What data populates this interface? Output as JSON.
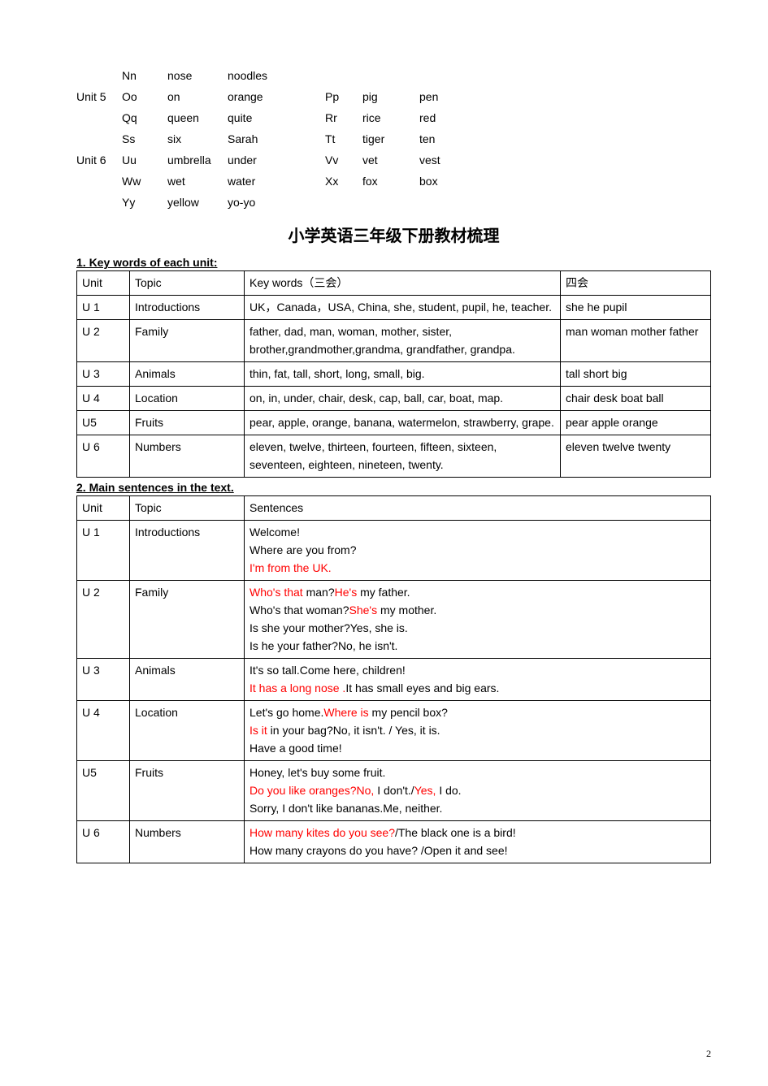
{
  "letters": {
    "rows": [
      {
        "label": "",
        "c1": "Nn",
        "w1": "nose",
        "w2": "noodles",
        "c2": "",
        "w3": "",
        "w4": ""
      },
      {
        "label": "Unit 5",
        "c1": "Oo",
        "w1": "on",
        "w2": "orange",
        "c2": "Pp",
        "w3": "pig",
        "w4": "pen"
      },
      {
        "label": "",
        "c1": "Qq",
        "w1": "queen",
        "w2": "quite",
        "c2": "Rr",
        "w3": "rice",
        "w4": "red"
      },
      {
        "label": "",
        "c1": "Ss",
        "w1": "six",
        "w2": "Sarah",
        "c2": "Tt",
        "w3": "tiger",
        "w4": "ten"
      },
      {
        "label": "Unit 6",
        "c1": "Uu",
        "w1": "umbrella",
        "w2": "under",
        "c2": "Vv",
        "w3": "vet",
        "w4": "vest"
      },
      {
        "label": "",
        "c1": "Ww",
        "w1": "wet",
        "w2": "water",
        "c2": "Xx",
        "w3": "fox",
        "w4": "box"
      },
      {
        "label": "",
        "c1": "Yy",
        "w1": "yellow",
        "w2": "yo-yo",
        "c2": "",
        "w3": "",
        "w4": ""
      }
    ]
  },
  "main_title": "小学英语三年级下册教材梳理",
  "section1_title": "1.  Key words of each unit:",
  "table1": {
    "headers": {
      "unit": "Unit",
      "topic": "Topic",
      "key": "Key words（三会）",
      "four": "四会"
    },
    "rows": [
      {
        "unit": "U 1",
        "topic": "Introductions",
        "key": "UK，Canada，USA, China, she, student, pupil, he, teacher.",
        "four": "she  he  pupil"
      },
      {
        "unit": "U 2",
        "topic": "Family",
        "key": "father, dad, man, woman, mother, sister, brother,grandmother,grandma, grandfather, grandpa.",
        "four": "man  woman  mother  father"
      },
      {
        "unit": "U 3",
        "topic": "Animals",
        "key": "thin, fat, tall, short, long, small, big.",
        "four": "tall   short   big"
      },
      {
        "unit": "U 4",
        "topic": "Location",
        "key": "on, in, under, chair, desk, cap, ball, car, boat, map.",
        "four": "chair   desk   boat  ball"
      },
      {
        "unit": "U5",
        "topic": "Fruits",
        "key": "pear, apple, orange, banana, watermelon, strawberry, grape.",
        "four": "pear   apple   orange"
      },
      {
        "unit": "U 6",
        "topic": "Numbers",
        "key": "eleven, twelve, thirteen, fourteen, fifteen, sixteen, seventeen, eighteen, nineteen, twenty.",
        "four": "eleven   twelve   twenty"
      }
    ]
  },
  "section2_title": "2. Main sentences in the text.",
  "table2": {
    "headers": {
      "unit": "Unit",
      "topic": "Topic",
      "sent": "Sentences"
    },
    "rows": [
      {
        "unit": "U 1",
        "topic": "Introductions",
        "lines": [
          {
            "parts": [
              {
                "t": "Welcome!",
                "red": false
              }
            ]
          },
          {
            "parts": [
              {
                "t": "Where are you from?",
                "red": false
              }
            ]
          },
          {
            "parts": [
              {
                "t": "I'm from the UK.",
                "red": true
              }
            ]
          }
        ]
      },
      {
        "unit": "U 2",
        "topic": "Family",
        "lines": [
          {
            "parts": [
              {
                "t": "Who's that ",
                "red": true
              },
              {
                "t": "man?",
                "red": false
              },
              {
                "t": "He's ",
                "red": true
              },
              {
                "t": "my father.",
                "red": false
              }
            ]
          },
          {
            "parts": [
              {
                "t": "Who's that woman?",
                "red": false
              },
              {
                "t": "She's ",
                "red": true
              },
              {
                "t": "my mother.",
                "red": false
              }
            ]
          },
          {
            "parts": [
              {
                "t": "Is she your mother?Yes, she is.",
                "red": false
              }
            ]
          },
          {
            "parts": [
              {
                "t": "Is he your father?No, he isn't.",
                "red": false
              }
            ]
          }
        ]
      },
      {
        "unit": "U 3",
        "topic": "Animals",
        "lines": [
          {
            "parts": [
              {
                "t": "It's so tall.Come here, children!",
                "red": false
              }
            ]
          },
          {
            "parts": [
              {
                "t": "It has a long nose .",
                "red": true
              },
              {
                "t": "It has small eyes and big ears.",
                "red": false
              }
            ]
          }
        ]
      },
      {
        "unit": "U 4",
        "topic": "Location",
        "lines": [
          {
            "parts": [
              {
                "t": "Let's go home.",
                "red": false
              },
              {
                "t": "Where is ",
                "red": true
              },
              {
                "t": "my pencil box?",
                "red": false
              }
            ]
          },
          {
            "parts": [
              {
                "t": "Is it ",
                "red": true
              },
              {
                "t": "in your bag?No, it isn't. / Yes, it is.",
                "red": false
              }
            ]
          },
          {
            "parts": [
              {
                "t": "Have a good time!",
                "red": false
              }
            ]
          }
        ]
      },
      {
        "unit": "U5",
        "topic": "Fruits",
        "lines": [
          {
            "parts": [
              {
                "t": "Honey, let's buy some fruit.",
                "red": false
              }
            ]
          },
          {
            "parts": [
              {
                "t": "Do you like oranges?",
                "red": true
              },
              {
                "t": "No,",
                "red": true
              },
              {
                "t": " I don't./",
                "red": false
              },
              {
                "t": "Yes,",
                "red": true
              },
              {
                "t": " I do.",
                "red": false
              }
            ]
          },
          {
            "parts": [
              {
                "t": "Sorry, I don't like bananas.Me, neither.",
                "red": false
              }
            ]
          }
        ]
      },
      {
        "unit": "U 6",
        "topic": "Numbers",
        "lines": [
          {
            "parts": [
              {
                "t": "How many kites do you see?",
                "red": true
              },
              {
                "t": "/The black one is a bird!",
                "red": false
              }
            ]
          },
          {
            "parts": [
              {
                "t": "How many crayons do you have? /Open it and see!",
                "red": false
              }
            ]
          }
        ]
      }
    ]
  },
  "page_number": "2"
}
